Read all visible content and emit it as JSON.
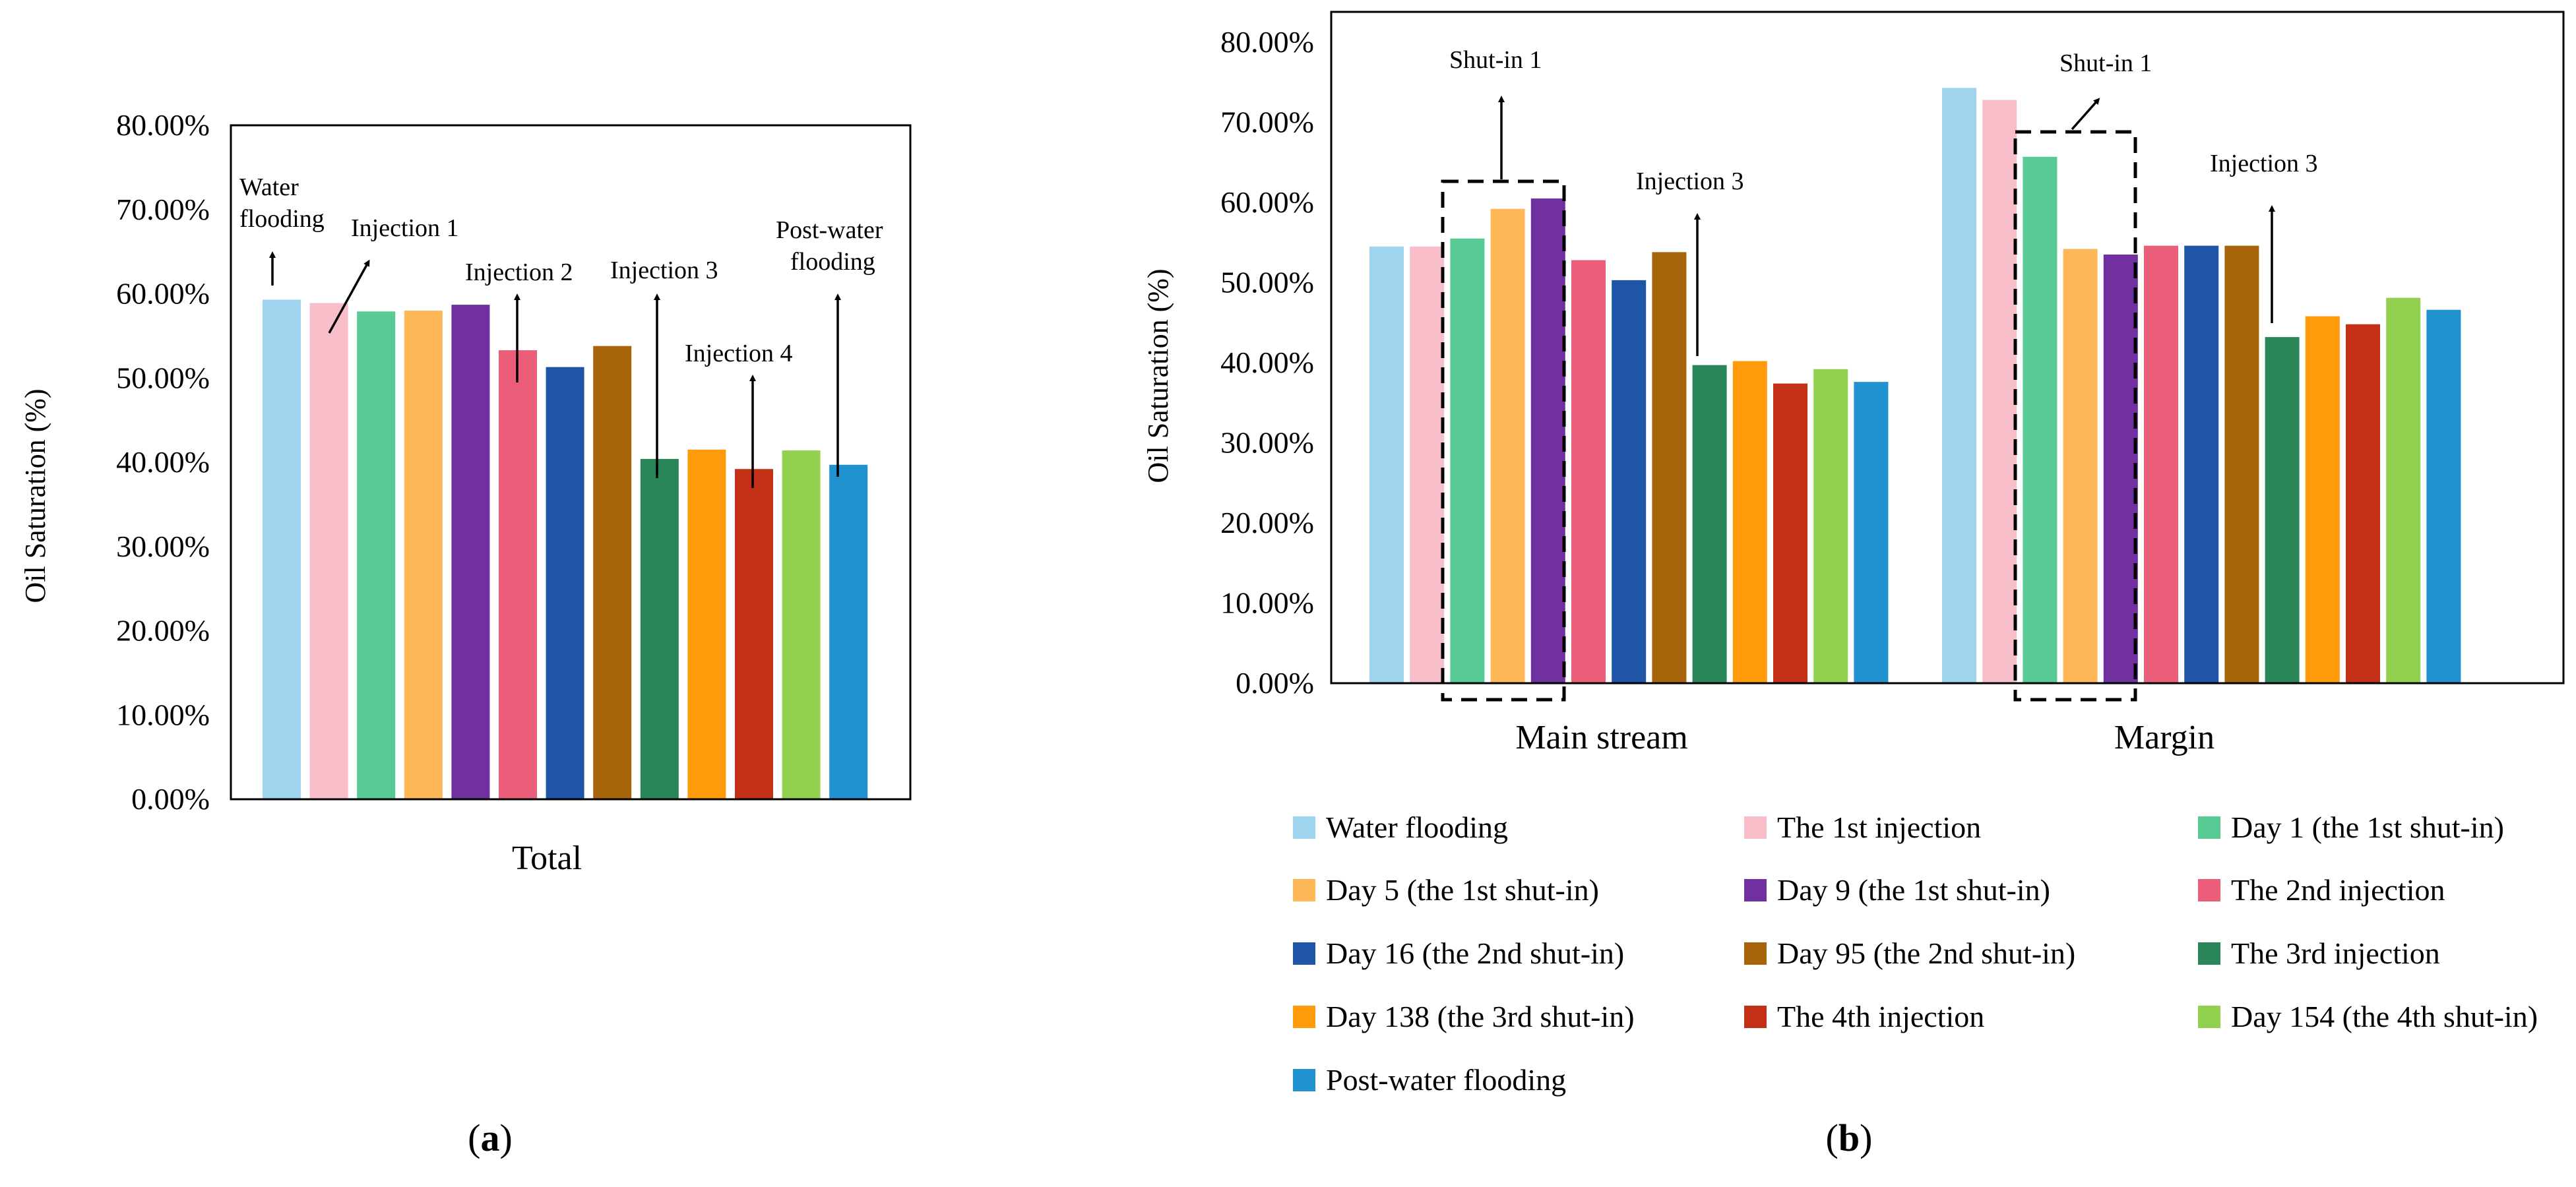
{
  "series": [
    {
      "name": "Water flooding",
      "color": "#9FD5EE"
    },
    {
      "name": "The 1st injection",
      "color": "#F8BFCB"
    },
    {
      "name": "Day 1 (the 1st shut-in)",
      "color": "#57CB93"
    },
    {
      "name": "Day 5 (the 1st shut-in)",
      "color": "#FFB857"
    },
    {
      "name": "Day 9 (the 1st shut-in)",
      "color": "#7030A0"
    },
    {
      "name": "The 2nd injection",
      "color": "#EB5E79"
    },
    {
      "name": "Day 16 (the 2nd shut-in)",
      "color": "#1F55A6"
    },
    {
      "name": "Day 95 (the 2nd shut-in)",
      "color": "#A8640A"
    },
    {
      "name": "The 3rd injection",
      "color": "#2A8558"
    },
    {
      "name": "Day 138 (the 3rd shut-in)",
      "color": "#FF9A0A"
    },
    {
      "name": "The 4th injection",
      "color": "#C33018"
    },
    {
      "name": "Day 154 (the 4th shut-in)",
      "color": "#92D050"
    },
    {
      "name": "Post-water flooding",
      "color": "#2092D0"
    }
  ],
  "chart_data": [
    {
      "type": "bar",
      "panel_label": "(a)",
      "ylabel": "Oil Saturation (%)",
      "ylim": [
        0,
        0.8
      ],
      "yticks": [
        "0.00%",
        "10.00%",
        "20.00%",
        "30.00%",
        "40.00%",
        "50.00%",
        "60.00%",
        "70.00%",
        "80.00%"
      ],
      "categories": [
        "Total"
      ],
      "values": [
        [
          0.593,
          0.589,
          0.579,
          0.58,
          0.587,
          0.533,
          0.513,
          0.538,
          0.404,
          0.415,
          0.392,
          0.414,
          0.397
        ]
      ],
      "annotations": [
        {
          "lines": [
            "Water",
            "flooding"
          ],
          "series": 0
        },
        {
          "lines": [
            "Injection 1"
          ],
          "series": 1
        },
        {
          "lines": [
            "Injection 2"
          ],
          "series": 5
        },
        {
          "lines": [
            "Injection 3"
          ],
          "series": 8
        },
        {
          "lines": [
            "Injection  4"
          ],
          "series": 10
        },
        {
          "lines": [
            "Post-water",
            "flooding"
          ],
          "series": 12
        }
      ]
    },
    {
      "type": "bar",
      "panel_label": "(b)",
      "ylabel": "Oil Saturation (%)",
      "ylim": [
        0,
        0.8
      ],
      "yticks": [
        "0.00%",
        "10.00%",
        "20.00%",
        "30.00%",
        "40.00%",
        "50.00%",
        "60.00%",
        "70.00%",
        "80.00%"
      ],
      "categories": [
        "Main stream",
        "Margin"
      ],
      "values": [
        [
          0.545,
          0.545,
          0.555,
          0.592,
          0.605,
          0.528,
          0.503,
          0.538,
          0.397,
          0.402,
          0.374,
          0.392,
          0.376
        ],
        [
          0.743,
          0.728,
          0.657,
          0.542,
          0.535,
          0.546,
          0.546,
          0.546,
          0.432,
          0.458,
          0.448,
          0.481,
          0.466
        ]
      ],
      "annotations": [
        {
          "lines": [
            "Shut-in 1"
          ],
          "category": 0
        },
        {
          "lines": [
            "Injection 3"
          ],
          "category": 0
        },
        {
          "lines": [
            "Shut-in 1"
          ],
          "category": 1
        },
        {
          "lines": [
            "Injection 3"
          ],
          "category": 1
        }
      ]
    }
  ]
}
